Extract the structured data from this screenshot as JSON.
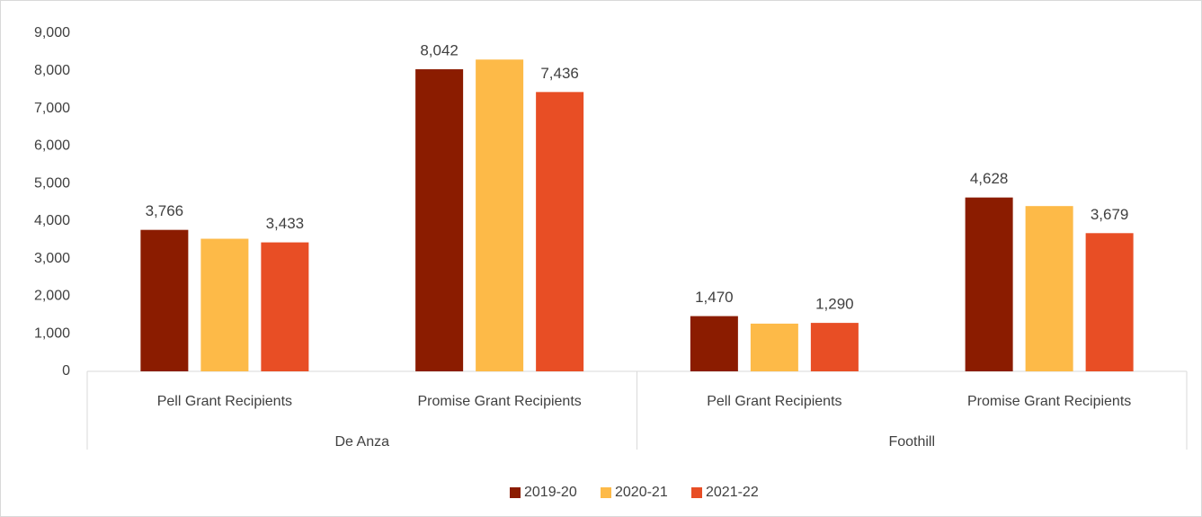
{
  "chart_data": {
    "type": "bar",
    "groups": [
      {
        "name": "De Anza",
        "categories": [
          "Pell Grant Recipients",
          "Promise Grant Recipients"
        ]
      },
      {
        "name": "Foothill",
        "categories": [
          "Pell Grant Recipients",
          "Promise Grant Recipients"
        ]
      }
    ],
    "series": [
      {
        "name": "2019-20",
        "color": "#8b1c00",
        "values": [
          3766,
          8042,
          1470,
          4628
        ],
        "value_labels": [
          "3,766",
          "8,042",
          "1,470",
          "4,628"
        ]
      },
      {
        "name": "2020-21",
        "color": "#fdba48",
        "values": [
          3530,
          8300,
          1270,
          4400
        ]
      },
      {
        "name": "2021-22",
        "color": "#e84e25",
        "values": [
          3433,
          7436,
          1290,
          3679
        ],
        "value_labels": [
          "3,433",
          "7,436",
          "1,290",
          "3,679"
        ]
      }
    ],
    "ylim": [
      0,
      9000
    ],
    "yticks": [
      0,
      {
        "value": 1000,
        "label": "1,000"
      },
      {
        "value": 2000,
        "label": "2,000"
      },
      {
        "value": 3000,
        "label": "3,000"
      },
      {
        "value": 4000,
        "label": "4,000"
      },
      {
        "value": 5000,
        "label": "5,000"
      },
      {
        "value": 6000,
        "label": "6,000"
      },
      {
        "value": 7000,
        "label": "7,000"
      },
      {
        "value": 8000,
        "label": "8,000"
      },
      {
        "value": 9000,
        "label": "9,000"
      }
    ],
    "grid": false,
    "legend": "bottom"
  }
}
